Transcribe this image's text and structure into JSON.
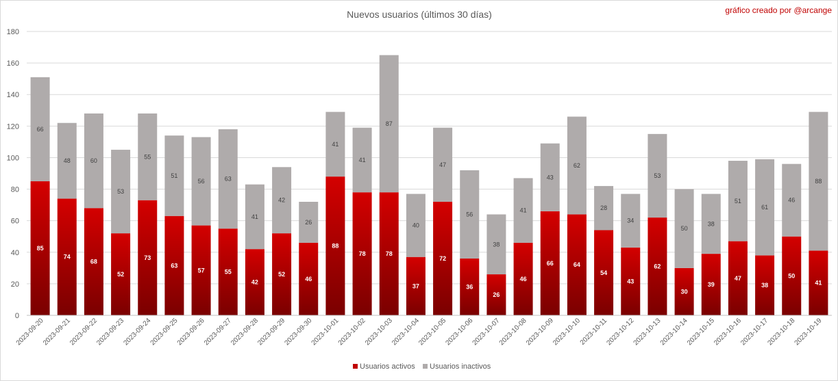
{
  "chart_data": {
    "type": "bar",
    "stacked": true,
    "title": "Nuevos usuarios (últimos 30 días)",
    "credit": "gráfico creado por @arcange",
    "xlabel": "",
    "ylabel": "",
    "ylim": [
      0,
      180
    ],
    "yticks": [
      0,
      20,
      40,
      60,
      80,
      100,
      120,
      140,
      160,
      180
    ],
    "grid": true,
    "legend_position": "bottom",
    "categories": [
      "2023-09-20",
      "2023-09-21",
      "2023-09-22",
      "2023-09-23",
      "2023-09-24",
      "2023-09-25",
      "2023-09-26",
      "2023-09-27",
      "2023-09-28",
      "2023-09-29",
      "2023-09-30",
      "2023-10-01",
      "2023-10-02",
      "2023-10-03",
      "2023-10-04",
      "2023-10-05",
      "2023-10-06",
      "2023-10-07",
      "2023-10-08",
      "2023-10-09",
      "2023-10-10",
      "2023-10-11",
      "2023-10-12",
      "2023-10-13",
      "2023-10-14",
      "2023-10-15",
      "2023-10-16",
      "2023-10-17",
      "2023-10-18",
      "2023-10-19"
    ],
    "series": [
      {
        "name": "Usuarios activos",
        "color": "#c00000",
        "values": [
          85,
          74,
          68,
          52,
          73,
          63,
          57,
          55,
          42,
          52,
          46,
          88,
          78,
          78,
          37,
          72,
          36,
          26,
          46,
          66,
          64,
          54,
          43,
          62,
          30,
          39,
          47,
          38,
          50,
          41
        ]
      },
      {
        "name": "Usuarios inactivos",
        "color": "#afabab",
        "values": [
          66,
          48,
          60,
          53,
          55,
          51,
          56,
          63,
          41,
          42,
          26,
          41,
          41,
          87,
          40,
          47,
          56,
          38,
          41,
          43,
          62,
          28,
          34,
          53,
          50,
          38,
          51,
          61,
          46,
          88
        ]
      }
    ]
  }
}
